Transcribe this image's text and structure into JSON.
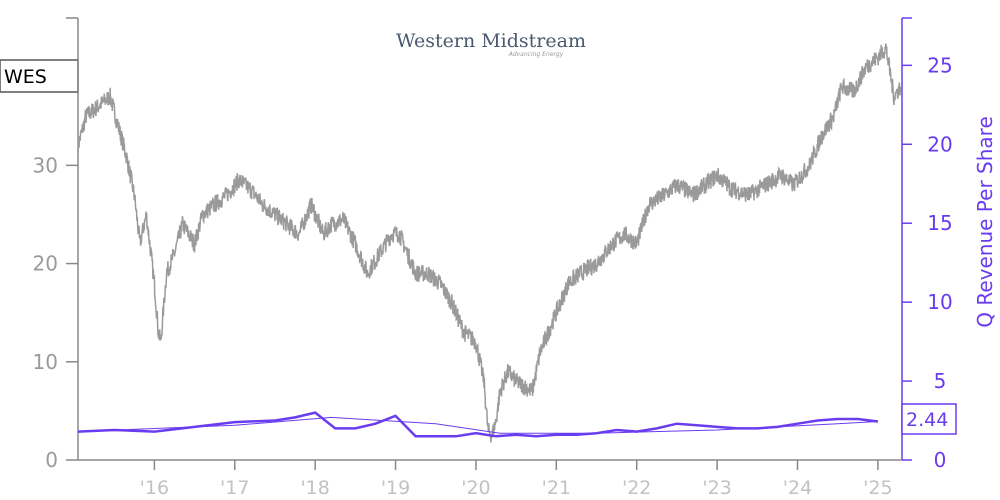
{
  "ticker": "WES",
  "logo": {
    "name": "Western Midstream",
    "tagline": "Advancing Energy"
  },
  "colors": {
    "price": "#9a9a9a",
    "revenue": "#6a3cf0",
    "axis_left": "#888888",
    "axis_right": "#6a3cf0"
  },
  "chart_data": {
    "type": "line",
    "ylabel_right": "Q Revenue Per Share",
    "last_value_label": "2.44",
    "x_tick_labels": [
      "'16",
      "'17",
      "'18",
      "'19",
      "'20",
      "'21",
      "'22",
      "'23",
      "'24",
      "'25"
    ],
    "x_tick_values": [
      2016,
      2017,
      2018,
      2019,
      2020,
      2021,
      2022,
      2023,
      2024,
      2025
    ],
    "xlim": [
      2015.05,
      2025.3
    ],
    "y_left": {
      "ticks": [
        0,
        10,
        20,
        30
      ],
      "lim": [
        0,
        45
      ]
    },
    "y_right": {
      "ticks": [
        0,
        5,
        10,
        15,
        20,
        25
      ],
      "lim": [
        0,
        28
      ]
    },
    "price_series": {
      "x": [
        2015.05,
        2015.15,
        2015.3,
        2015.45,
        2015.55,
        2015.65,
        2015.75,
        2015.82,
        2015.9,
        2016.0,
        2016.05,
        2016.08,
        2016.15,
        2016.25,
        2016.35,
        2016.5,
        2016.6,
        2016.75,
        2016.9,
        2017.05,
        2017.2,
        2017.35,
        2017.5,
        2017.65,
        2017.8,
        2017.95,
        2018.0,
        2018.1,
        2018.2,
        2018.35,
        2018.5,
        2018.65,
        2018.8,
        2018.95,
        2019.05,
        2019.15,
        2019.25,
        2019.4,
        2019.55,
        2019.7,
        2019.85,
        2020.0,
        2020.1,
        2020.15,
        2020.2,
        2020.25,
        2020.3,
        2020.4,
        2020.5,
        2020.6,
        2020.7,
        2020.8,
        2020.9,
        2021.0,
        2021.15,
        2021.3,
        2021.5,
        2021.7,
        2021.85,
        2022.0,
        2022.15,
        2022.35,
        2022.5,
        2022.7,
        2022.85,
        2023.0,
        2023.2,
        2023.4,
        2023.6,
        2023.8,
        2023.95,
        2024.05,
        2024.15,
        2024.3,
        2024.45,
        2024.55,
        2024.7,
        2024.85,
        2025.0,
        2025.1,
        2025.2,
        2025.28
      ],
      "y": [
        32,
        35,
        36,
        37,
        34,
        31,
        27,
        22,
        25,
        18,
        13,
        12,
        19,
        21,
        24,
        22,
        25,
        26,
        27,
        28.5,
        27.5,
        26,
        25,
        24,
        23,
        26,
        25,
        23,
        24,
        24.5,
        22,
        19,
        21,
        23,
        23,
        21,
        19,
        19,
        18,
        16,
        13,
        12,
        8,
        3,
        2.5,
        4,
        7,
        9,
        8,
        7.5,
        7,
        11,
        13,
        15,
        18,
        19,
        20,
        22,
        23,
        22,
        26,
        27,
        28,
        27,
        28,
        29,
        27.5,
        27,
        28,
        29,
        28,
        29,
        30,
        33,
        35,
        38,
        37.5,
        40,
        41,
        42,
        37,
        38
      ]
    },
    "revenue_series": {
      "x": [
        2015.05,
        2015.5,
        2016.0,
        2016.5,
        2017.0,
        2017.5,
        2017.75,
        2018.0,
        2018.25,
        2018.5,
        2018.75,
        2019.0,
        2019.25,
        2019.5,
        2019.75,
        2020.0,
        2020.25,
        2020.5,
        2020.75,
        2021.0,
        2021.25,
        2021.5,
        2021.75,
        2022.0,
        2022.25,
        2022.5,
        2022.75,
        2023.0,
        2023.25,
        2023.5,
        2023.75,
        2024.0,
        2024.25,
        2024.5,
        2024.75,
        2025.0
      ],
      "y": [
        1.8,
        1.9,
        1.8,
        2.1,
        2.4,
        2.5,
        2.7,
        3.0,
        2.0,
        2.0,
        2.3,
        2.8,
        1.5,
        1.5,
        1.5,
        1.7,
        1.5,
        1.6,
        1.5,
        1.6,
        1.6,
        1.7,
        1.9,
        1.8,
        2.0,
        2.3,
        2.2,
        2.1,
        2.0,
        2.0,
        2.1,
        2.3,
        2.5,
        2.6,
        2.6,
        2.44
      ]
    },
    "revenue_trend": {
      "x": [
        2015.05,
        2017.0,
        2018.2,
        2019.5,
        2020.3,
        2021.5,
        2023.0,
        2024.5,
        2025.0
      ],
      "y": [
        1.8,
        2.2,
        2.7,
        2.3,
        1.7,
        1.7,
        1.9,
        2.3,
        2.44
      ]
    }
  }
}
